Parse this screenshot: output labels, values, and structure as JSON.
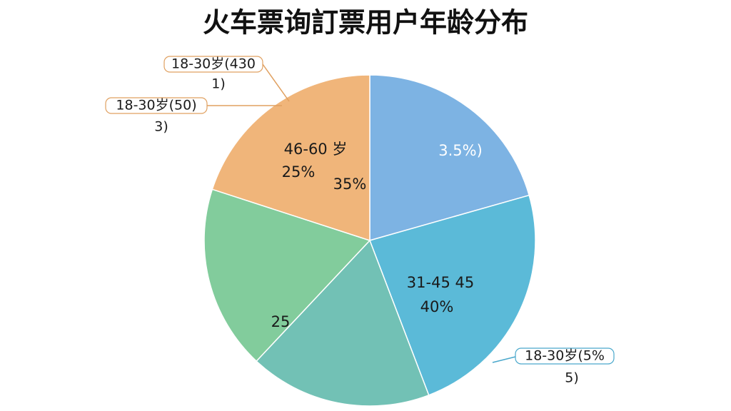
{
  "chart_data": {
    "type": "pie",
    "title": "火车票询訂票用户年龄分布",
    "values": [
      20.6,
      23.6,
      17.8,
      18.0,
      20.0
    ],
    "colors": [
      "#7db3e3",
      "#5bbad8",
      "#72c1b5",
      "#82cc9c",
      "#f0b57a"
    ],
    "slice_texts": [
      [
        "3.5%)"
      ],
      [
        "31-45 45",
        "40%"
      ],
      [],
      [
        "25"
      ],
      [
        "46-60 岁",
        "25%",
        "35%"
      ]
    ],
    "callouts": [
      {
        "lines": [
          "18-30岁(430",
          "1)"
        ]
      },
      {
        "lines": [
          "18-30岁(50)",
          "3)"
        ]
      },
      {
        "lines": [
          "18-30岁(5%",
          "5)"
        ]
      }
    ]
  }
}
